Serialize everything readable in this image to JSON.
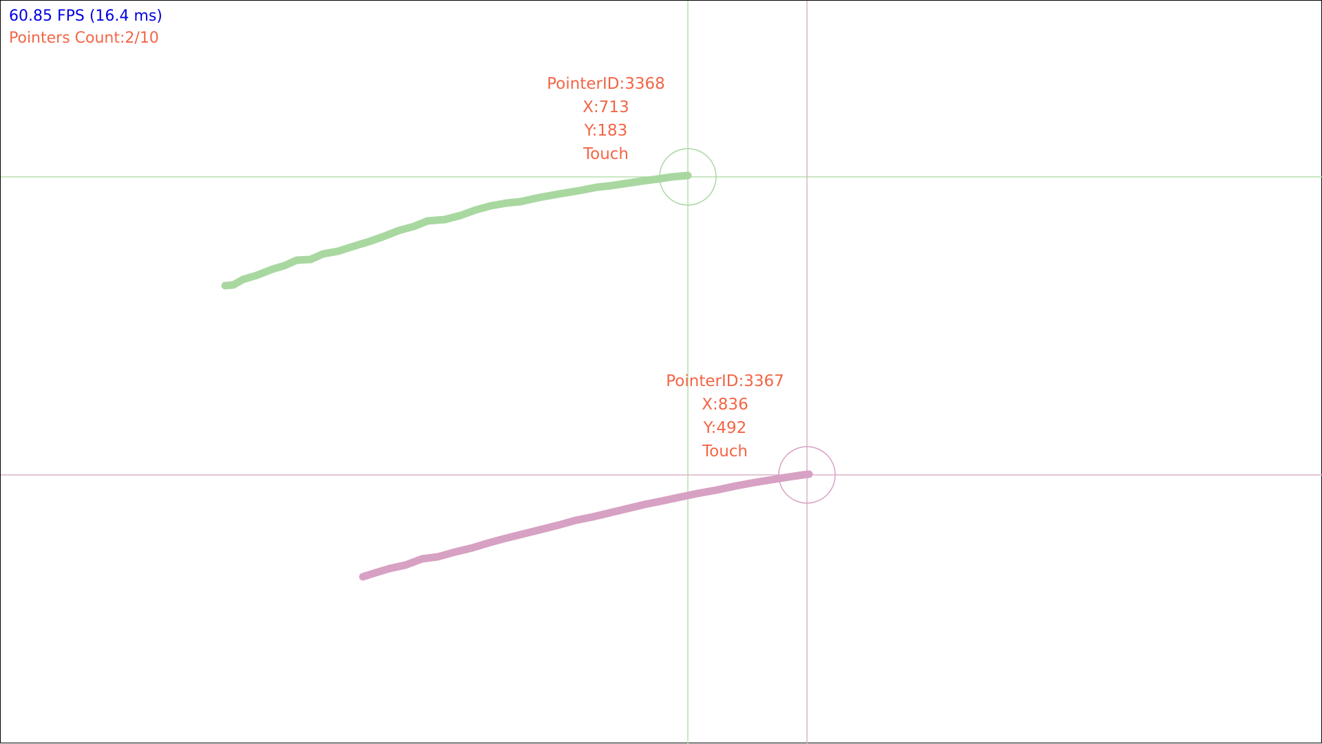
{
  "hud": {
    "fps_text": "60.85 FPS (16.4 ms)",
    "pointers_count_text": "Pointers Count:2/10"
  },
  "colors": {
    "fps_text": "#0000e0",
    "label_text": "#f26546",
    "pointer_a": "#a8d8a0",
    "pointer_a_line": "#b5dfae",
    "pointer_b": "#d7a1c3",
    "pointer_b_line": "#dcb0c9",
    "border": "#000000",
    "background": "#ffffff"
  },
  "pointers": [
    {
      "id_text": "PointerID:3368",
      "x_text": "X:713",
      "y_text": "Y:183",
      "type_text": "Touch"
    },
    {
      "id_text": "PointerID:3367",
      "x_text": "X:836",
      "y_text": "Y:492",
      "type_text": "Touch"
    }
  ]
}
